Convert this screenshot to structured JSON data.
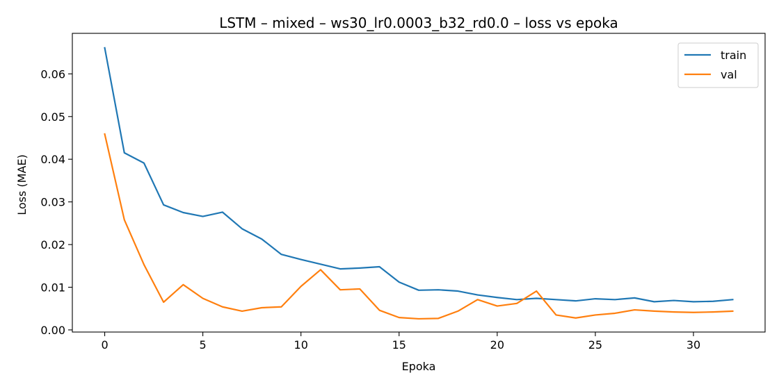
{
  "chart_data": {
    "type": "line",
    "title": "LSTM – mixed – ws30_lr0.0003_b32_rd0.0 – loss vs epoka",
    "xlabel": "Epoka",
    "ylabel": "Loss (MAE)",
    "xlim": [
      -1.65,
      33.65
    ],
    "ylim": [
      -0.0005,
      0.0695
    ],
    "xticks": [
      0,
      5,
      10,
      15,
      20,
      25,
      30
    ],
    "xtick_labels": [
      "0",
      "5",
      "10",
      "15",
      "20",
      "25",
      "30"
    ],
    "yticks": [
      0.0,
      0.01,
      0.02,
      0.03,
      0.04,
      0.05,
      0.06
    ],
    "ytick_labels": [
      "0.00",
      "0.01",
      "0.02",
      "0.03",
      "0.04",
      "0.05",
      "0.06"
    ],
    "grid": false,
    "legend_position": "top-right",
    "x": [
      0,
      1,
      2,
      3,
      4,
      5,
      6,
      7,
      8,
      9,
      10,
      11,
      12,
      13,
      14,
      15,
      16,
      17,
      18,
      19,
      20,
      21,
      22,
      23,
      24,
      25,
      26,
      27,
      28,
      29,
      30,
      31,
      32
    ],
    "series": [
      {
        "name": "train",
        "color": "#1f77b4",
        "values": [
          0.0661,
          0.0415,
          0.0391,
          0.0293,
          0.0275,
          0.0266,
          0.0276,
          0.0237,
          0.0213,
          0.0177,
          0.0165,
          0.0154,
          0.0143,
          0.0145,
          0.0148,
          0.0112,
          0.0093,
          0.0094,
          0.0091,
          0.0082,
          0.0076,
          0.0071,
          0.0074,
          0.0071,
          0.0068,
          0.0073,
          0.0071,
          0.0075,
          0.0066,
          0.0069,
          0.0066,
          0.0067,
          0.0071
        ]
      },
      {
        "name": "val",
        "color": "#ff7f0e",
        "values": [
          0.0459,
          0.0258,
          0.0153,
          0.0065,
          0.0106,
          0.0074,
          0.0054,
          0.0044,
          0.0052,
          0.0054,
          0.0102,
          0.0141,
          0.0094,
          0.0096,
          0.0046,
          0.0029,
          0.0026,
          0.0027,
          0.0044,
          0.0071,
          0.0056,
          0.0062,
          0.0091,
          0.0035,
          0.0028,
          0.0035,
          0.0039,
          0.0047,
          0.0044,
          0.0042,
          0.0041,
          0.0042,
          0.0044
        ]
      }
    ]
  }
}
